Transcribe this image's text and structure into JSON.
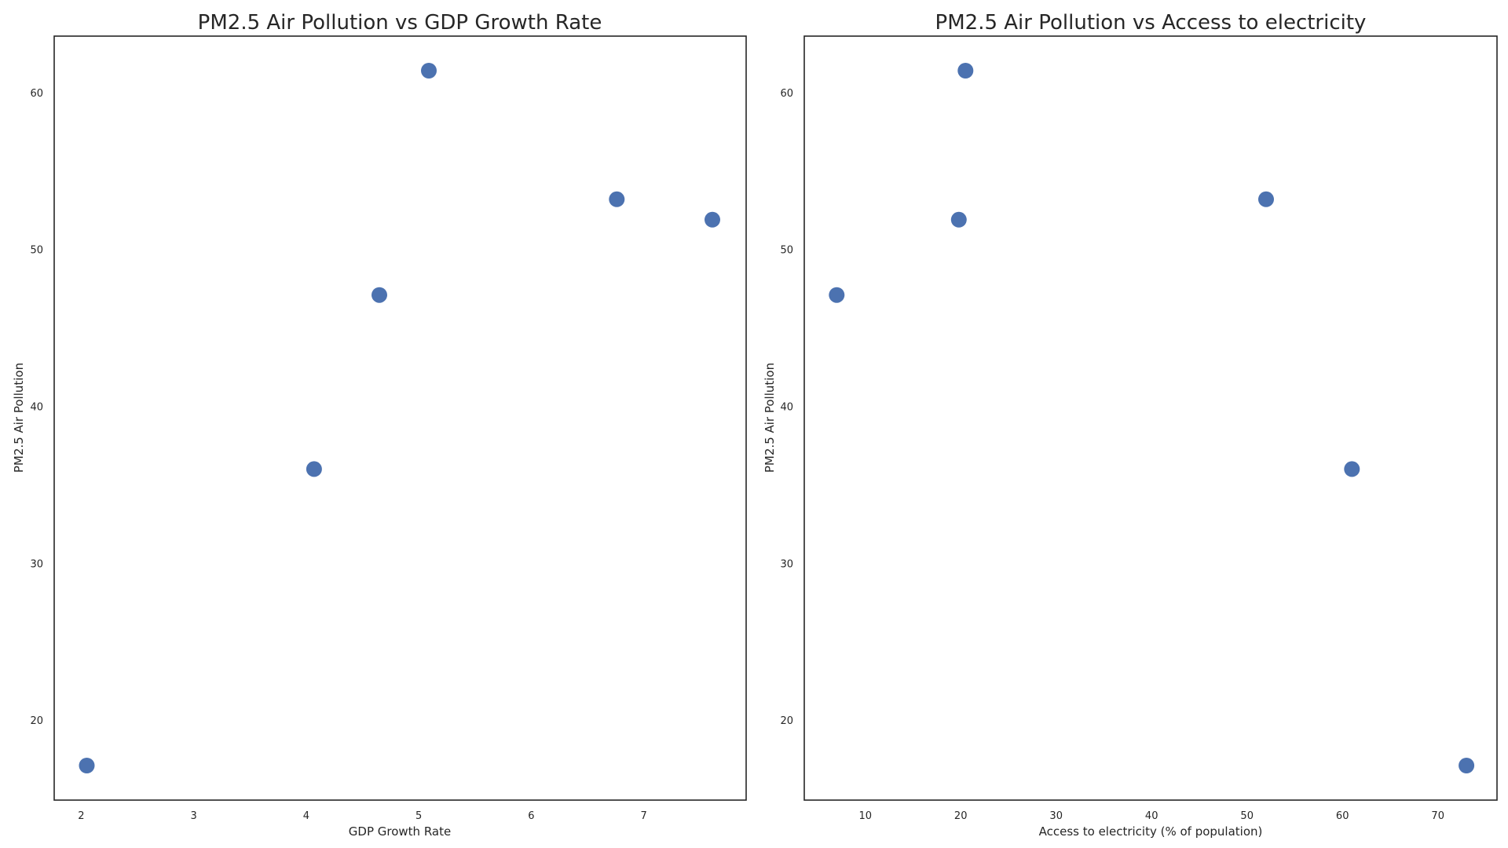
{
  "chart_data": [
    {
      "type": "scatter",
      "title": "PM2.5 Air Pollution vs GDP Growth Rate",
      "xlabel": "GDP Growth Rate",
      "ylabel": "PM2.5 Air Pollution",
      "xlim": [
        1.76,
        7.91
      ],
      "ylim": [
        14.9,
        63.6
      ],
      "xticks": [
        2,
        3,
        4,
        5,
        6,
        7
      ],
      "yticks": [
        20,
        30,
        40,
        50,
        60
      ],
      "grid": false,
      "color": "#4c72b0",
      "x": [
        2.05,
        4.07,
        4.65,
        5.09,
        6.76,
        7.61
      ],
      "y": [
        17.1,
        36.0,
        47.1,
        61.4,
        53.2,
        51.9
      ]
    },
    {
      "type": "scatter",
      "title": "PM2.5 Air Pollution vs Access to electricity",
      "xlabel": "Access to electricity (% of population)",
      "ylabel": "PM2.5 Air Pollution",
      "xlim": [
        3.6,
        76.2
      ],
      "ylim": [
        14.9,
        63.6
      ],
      "xticks": [
        10,
        20,
        30,
        40,
        50,
        60,
        70
      ],
      "yticks": [
        20,
        30,
        40,
        50,
        60
      ],
      "grid": false,
      "color": "#4c72b0",
      "x": [
        73.0,
        61.0,
        7.0,
        20.5,
        52.0,
        19.8
      ],
      "y": [
        17.1,
        36.0,
        47.1,
        61.4,
        53.2,
        51.9
      ]
    }
  ]
}
